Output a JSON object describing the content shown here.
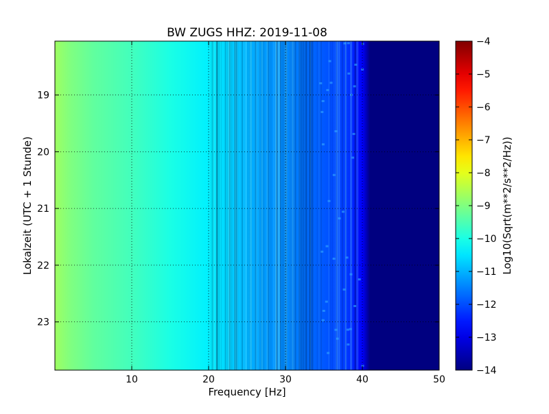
{
  "chart_data": {
    "type": "heatmap",
    "title": "BW ZUGS HHZ: 2019-11-08",
    "xlabel": "Frequency [Hz]",
    "ylabel": "Lokalzeit (UTC + 1 Stunde)",
    "xlim": [
      0,
      50
    ],
    "ylim": [
      18.05,
      23.85
    ],
    "y_inverted": true,
    "xticks": [
      10,
      20,
      30,
      40,
      50
    ],
    "yticks": [
      19,
      20,
      21,
      22,
      23
    ],
    "grid": true,
    "colormap": "jet",
    "colorbar": {
      "label": "Log10(Sqrt(m**2/s**2/Hz))",
      "range": [
        -14,
        -4
      ],
      "ticks": [
        -4,
        -5,
        -6,
        -7,
        -8,
        -9,
        -10,
        -11,
        -12,
        -13,
        -14
      ]
    },
    "spectrum_profile": {
      "frequency_hz": [
        0,
        2,
        5,
        10,
        15,
        20,
        22,
        25,
        28,
        30,
        32,
        35,
        38,
        40,
        41,
        45,
        50
      ],
      "log10_amplitude": [
        -8.7,
        -9.0,
        -9.3,
        -9.6,
        -10.0,
        -10.4,
        -10.6,
        -11.0,
        -11.3,
        -11.4,
        -11.6,
        -11.9,
        -12.2,
        -12.8,
        -14.0,
        -14.0,
        -14.0
      ]
    }
  }
}
